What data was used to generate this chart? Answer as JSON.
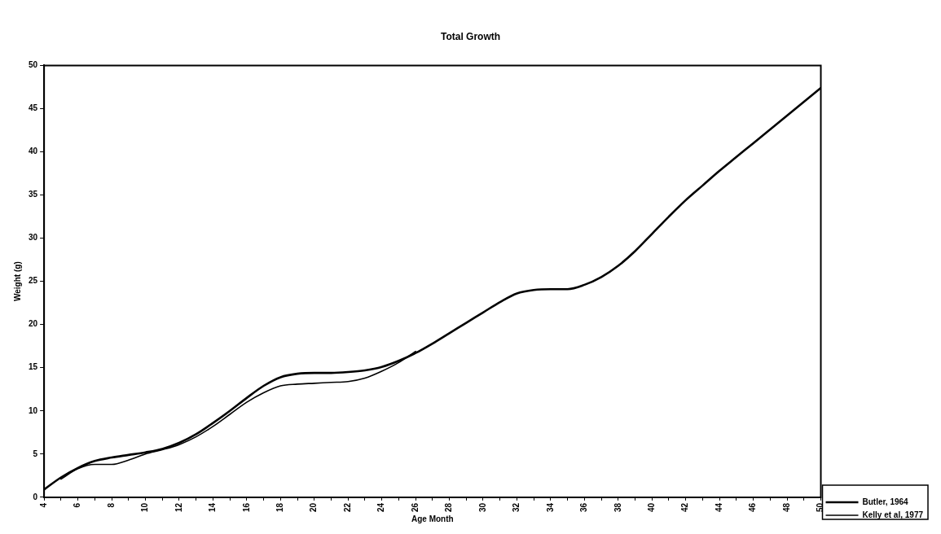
{
  "chart_data": {
    "type": "line",
    "title": "Total Growth",
    "xlabel": "Age Month",
    "ylabel": "Weight (g)",
    "xlim": [
      4,
      50
    ],
    "xticks": [
      4,
      {
        "value": 5,
        "label": null
      },
      6,
      {
        "value": 7,
        "label": null
      },
      8,
      {
        "value": 9,
        "label": null
      },
      10,
      {
        "value": 11,
        "label": null
      },
      12,
      {
        "value": 13,
        "label": null
      },
      14,
      {
        "value": 15,
        "label": null
      },
      16,
      {
        "value": 17,
        "label": null
      },
      18,
      {
        "value": 19,
        "label": null
      },
      20,
      {
        "value": 21,
        "label": null
      },
      22,
      {
        "value": 23,
        "label": null
      },
      24,
      {
        "value": 25,
        "label": null
      },
      26,
      {
        "value": 27,
        "label": null
      },
      28,
      {
        "value": 29,
        "label": null
      },
      30,
      {
        "value": 31,
        "label": null
      },
      32,
      {
        "value": 33,
        "label": null
      },
      34,
      {
        "value": 35,
        "label": null
      },
      36,
      {
        "value": 37,
        "label": null
      },
      38,
      {
        "value": 39,
        "label": null
      },
      40,
      {
        "value": 41,
        "label": null
      },
      42,
      {
        "value": 43,
        "label": null
      },
      44,
      {
        "value": 45,
        "label": null
      },
      46,
      {
        "value": 47,
        "label": null
      },
      48,
      {
        "value": 49,
        "label": null
      },
      50
    ],
    "ylim": [
      0,
      50
    ],
    "yticks": [
      0,
      5,
      10,
      15,
      20,
      25,
      30,
      35,
      40,
      45,
      50
    ],
    "grid": false,
    "legend": "bottom right",
    "marker": "none",
    "line_style": "solid",
    "series": [
      {
        "name": "Butler, 1964",
        "color": "#000000",
        "x": [
          4,
          5,
          6,
          7,
          8,
          9,
          10,
          11,
          12,
          13,
          14,
          15,
          16,
          17,
          18,
          19,
          20,
          21,
          22,
          23,
          24,
          25,
          26,
          27,
          28,
          29,
          30,
          31,
          32,
          33,
          34,
          35,
          36,
          37,
          38,
          39,
          40,
          41,
          42,
          43,
          44,
          45,
          46,
          47,
          48,
          49,
          50
        ],
        "values": [
          0.9,
          2.3,
          3.4,
          4.2,
          4.6,
          4.9,
          5.2,
          5.6,
          6.3,
          7.3,
          8.6,
          10.0,
          11.5,
          12.9,
          13.9,
          14.3,
          14.4,
          14.4,
          14.5,
          14.7,
          15.1,
          15.8,
          16.7,
          17.8,
          19.0,
          20.2,
          21.4,
          22.6,
          23.6,
          24.0,
          24.1,
          24.1,
          24.6,
          25.5,
          26.8,
          28.5,
          30.5,
          32.5,
          34.4,
          36.1,
          37.8,
          39.4,
          41.0,
          42.6,
          44.2,
          45.8,
          47.4
        ]
      },
      {
        "name": "Kelly et al, 1977",
        "color": "#000000",
        "x": [
          5,
          6,
          7,
          8,
          9,
          10,
          11,
          12,
          13,
          14,
          15,
          16,
          17,
          18,
          19,
          20,
          21,
          22,
          23,
          24,
          25,
          26
        ],
        "values": [
          2.1,
          3.3,
          3.8,
          3.8,
          4.3,
          5.0,
          5.5,
          6.1,
          7.0,
          8.2,
          9.6,
          11.0,
          12.1,
          12.9,
          13.1,
          13.2,
          13.3,
          13.4,
          13.8,
          14.6,
          15.6,
          16.9
        ]
      }
    ]
  }
}
